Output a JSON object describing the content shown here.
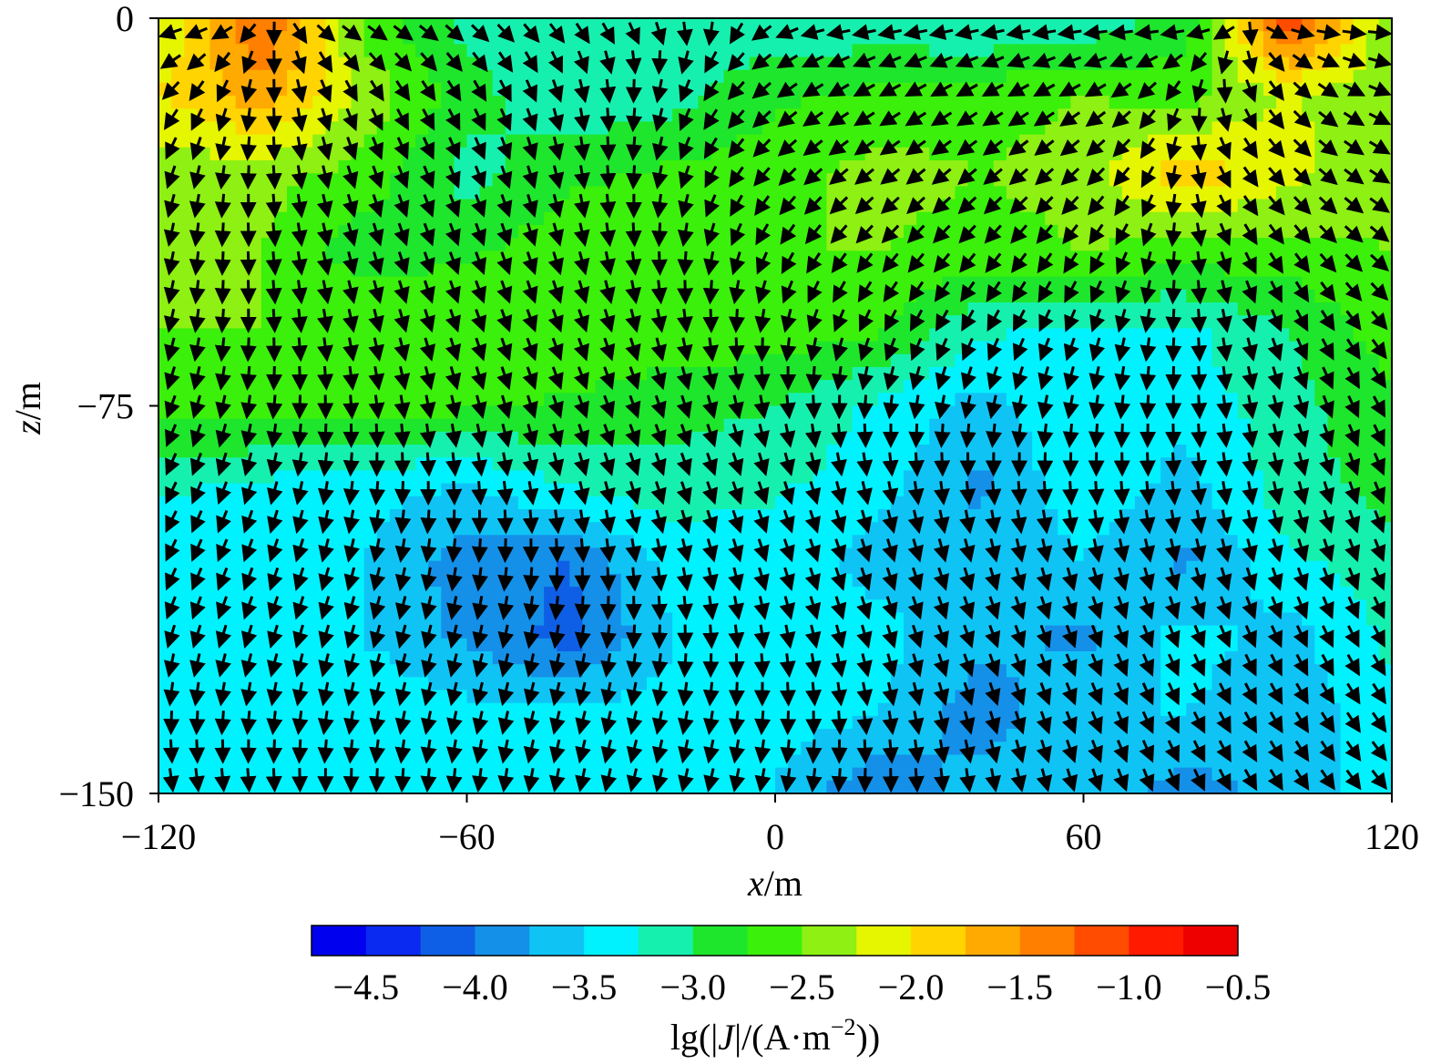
{
  "chart_data": {
    "type": "heatmap",
    "title": "",
    "xlabel": {
      "var": "x",
      "unit": "/m"
    },
    "ylabel": {
      "var": "z",
      "unit": "/m"
    },
    "xlim": [
      -120,
      120
    ],
    "ylim": [
      -150,
      0
    ],
    "x_ticks": [
      -120,
      -60,
      0,
      60,
      120
    ],
    "x_tick_labels": [
      "−120",
      "−60",
      "0",
      "60",
      "120"
    ],
    "y_ticks": [
      0,
      -75,
      -150
    ],
    "y_tick_labels": [
      "0",
      "−75",
      "−150"
    ],
    "grid": false,
    "field": {
      "quantity": "lg(|J|)",
      "z_rows_m": [
        0,
        -15,
        -30,
        -45,
        -60,
        -75,
        -90,
        -105,
        -120,
        -135,
        -150
      ],
      "x_cols_m": [
        -120,
        -100,
        -80,
        -60,
        -40,
        -20,
        0,
        20,
        40,
        60,
        80,
        100,
        120
      ],
      "values": [
        [
          -2.3,
          -1.2,
          -2.6,
          -3.1,
          -3.2,
          -3.2,
          -3.2,
          -3.2,
          -3.3,
          -3.2,
          -2.9,
          -1.0,
          -2.5
        ],
        [
          -2.0,
          -1.6,
          -2.3,
          -2.9,
          -3.2,
          -3.1,
          -2.8,
          -2.7,
          -2.6,
          -2.5,
          -2.6,
          -2.2,
          -2.5
        ],
        [
          -2.4,
          -2.4,
          -2.6,
          -3.1,
          -2.8,
          -2.7,
          -2.6,
          -2.4,
          -2.5,
          -2.4,
          -1.8,
          -2.2,
          -2.4
        ],
        [
          -2.5,
          -2.5,
          -2.9,
          -2.8,
          -2.6,
          -2.5,
          -2.5,
          -2.5,
          -2.6,
          -2.5,
          -2.6,
          -2.6,
          -2.5
        ],
        [
          -2.5,
          -2.5,
          -2.5,
          -2.5,
          -2.5,
          -2.6,
          -2.6,
          -2.7,
          -3.2,
          -3.3,
          -3.3,
          -3.0,
          -2.6
        ],
        [
          -2.6,
          -2.6,
          -2.6,
          -2.7,
          -2.8,
          -2.9,
          -3.0,
          -3.3,
          -3.6,
          -3.3,
          -3.4,
          -3.1,
          -2.8
        ],
        [
          -3.2,
          -3.3,
          -3.4,
          -3.5,
          -3.2,
          -3.1,
          -3.2,
          -3.4,
          -3.8,
          -3.3,
          -3.6,
          -3.1,
          -2.9
        ],
        [
          -3.4,
          -3.4,
          -3.5,
          -3.9,
          -4.0,
          -3.4,
          -3.4,
          -3.6,
          -3.7,
          -3.5,
          -3.8,
          -3.3,
          -3.1
        ],
        [
          -3.4,
          -3.4,
          -3.5,
          -3.8,
          -4.1,
          -3.5,
          -3.3,
          -3.4,
          -3.7,
          -3.8,
          -3.4,
          -3.6,
          -3.2
        ],
        [
          -3.3,
          -3.3,
          -3.3,
          -3.4,
          -3.4,
          -3.4,
          -3.4,
          -3.5,
          -3.9,
          -3.5,
          -3.5,
          -3.7,
          -3.3
        ],
        [
          -3.4,
          -3.4,
          -3.4,
          -3.4,
          -3.4,
          -3.5,
          -3.5,
          -4.0,
          -3.6,
          -3.5,
          -3.9,
          -3.6,
          -3.4
        ]
      ]
    },
    "vector_field": {
      "quantity": "current density direction J",
      "color": "#000000"
    },
    "colorbar": {
      "label_prefix": "lg(|",
      "label_var": "J",
      "label_mid": "|/(A·m",
      "label_exp": "−2",
      "label_suffix": "))",
      "range": [
        -4.75,
        -0.5
      ],
      "ticks": [
        -4.5,
        -4.0,
        -3.5,
        -3.0,
        -2.5,
        -2.0,
        -1.5,
        -1.0,
        -0.5
      ],
      "tick_labels": [
        "−4.5",
        "−4.0",
        "−3.5",
        "−3.0",
        "−2.5",
        "−2.0",
        "−1.5",
        "−1.0",
        "−0.5"
      ],
      "colors": [
        "#0000ee",
        "#0a2af2",
        "#0f5fe6",
        "#1590e8",
        "#0fc4f5",
        "#00f2ff",
        "#16f0ae",
        "#1ee62c",
        "#3bf00a",
        "#8ef013",
        "#e6f500",
        "#ffd400",
        "#ffaa00",
        "#ff7f00",
        "#ff4c00",
        "#ff1a00",
        "#ee0000"
      ]
    }
  }
}
